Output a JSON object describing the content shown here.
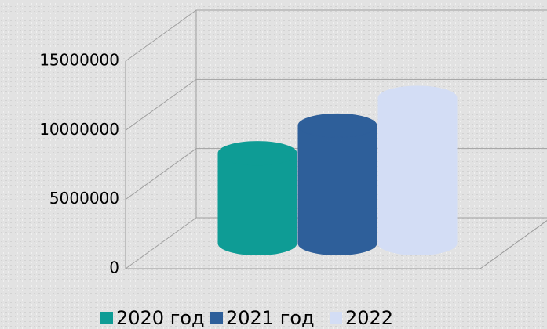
{
  "chart_data": {
    "type": "bar",
    "categories": [
      null
    ],
    "series": [
      {
        "name": "2020 год",
        "color": "#0e9c95",
        "values": [
          6500000
        ]
      },
      {
        "name": "2021 год",
        "color": "#2e5f9a",
        "values": [
          8500000
        ]
      },
      {
        "name": "2022",
        "color": "#d3ddf5",
        "values": [
          10500000
        ]
      }
    ],
    "ylim": [
      0,
      15000000
    ],
    "yticks": [
      0,
      5000000,
      10000000,
      15000000
    ],
    "grid": true,
    "legend": "bottom"
  }
}
